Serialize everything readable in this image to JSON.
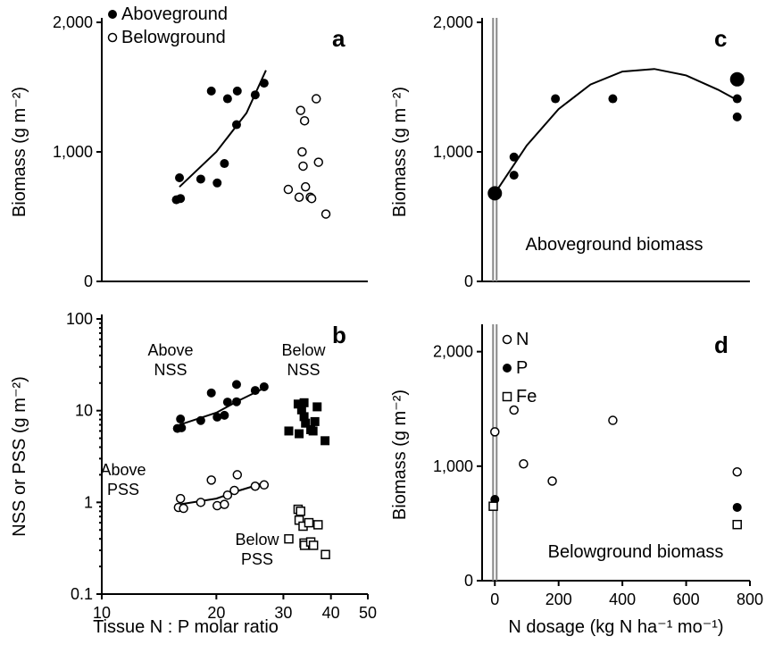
{
  "chart_data": [
    {
      "id": "a",
      "type": "scatter",
      "panel_label": "a",
      "xlabel": "",
      "ylabel": "Biomass (g m⁻²)",
      "xlim": [
        10,
        50
      ],
      "ylim": [
        0,
        2000
      ],
      "xscale": "log",
      "xticks": [],
      "yticks": [
        0,
        1000,
        2000
      ],
      "ytick_labels": [
        "0",
        "1,000",
        "2,000"
      ],
      "legend": [
        {
          "name": "Aboveground",
          "marker": "filled-circle"
        },
        {
          "name": "Belowground",
          "marker": "open-circle"
        }
      ],
      "legend_position": "top-left",
      "series": [
        {
          "name": "Aboveground",
          "marker": "filled-circle",
          "points": [
            [
              15.7,
              630
            ],
            [
              16.1,
              640
            ],
            [
              16.0,
              800
            ],
            [
              18.2,
              790
            ],
            [
              19.4,
              1470
            ],
            [
              20.1,
              760
            ],
            [
              21.0,
              910
            ],
            [
              21.4,
              1410
            ],
            [
              22.6,
              1210
            ],
            [
              22.7,
              1470
            ],
            [
              25.3,
              1440
            ],
            [
              26.7,
              1530
            ]
          ]
        },
        {
          "name": "Belowground",
          "marker": "open-circle",
          "points": [
            [
              30.9,
              710
            ],
            [
              33.0,
              650
            ],
            [
              33.3,
              1320
            ],
            [
              33.6,
              1000
            ],
            [
              33.8,
              890
            ],
            [
              34.1,
              1240
            ],
            [
              34.3,
              730
            ],
            [
              35.3,
              650
            ],
            [
              35.6,
              640
            ],
            [
              36.6,
              1410
            ],
            [
              37.1,
              920
            ],
            [
              38.8,
              520
            ]
          ]
        }
      ],
      "fit_lines": [
        {
          "series": "Aboveground",
          "points": [
            [
              16,
              730
            ],
            [
              20,
              1000
            ],
            [
              24,
              1300
            ],
            [
              27,
              1630
            ]
          ]
        }
      ]
    },
    {
      "id": "b",
      "type": "scatter",
      "panel_label": "b",
      "xlabel": "Tissue N : P molar ratio",
      "ylabel": "NSS or PSS (g m⁻²)",
      "xlim": [
        10,
        50
      ],
      "ylim": [
        0.1,
        100
      ],
      "xscale": "log",
      "yscale": "log",
      "xticks": [
        10,
        20,
        30,
        40,
        50
      ],
      "xtick_labels": [
        "10",
        "20",
        "30",
        "40",
        "50"
      ],
      "yticks": [
        0.1,
        1,
        10,
        100
      ],
      "ytick_labels": [
        "0.1",
        "1",
        "10",
        "100"
      ],
      "annotations": [
        {
          "text": [
            "Above",
            "NSS"
          ],
          "series": "Above NSS"
        },
        {
          "text": [
            "Below",
            "NSS"
          ],
          "series": "Below NSS"
        },
        {
          "text": [
            "Above",
            "PSS"
          ],
          "series": "Above PSS"
        },
        {
          "text": [
            "Below",
            "PSS"
          ],
          "series": "Below PSS"
        }
      ],
      "series": [
        {
          "name": "Above NSS",
          "marker": "filled-circle",
          "points": [
            [
              15.8,
              6.4
            ],
            [
              16.2,
              6.5
            ],
            [
              16.1,
              8.1
            ],
            [
              18.2,
              7.8
            ],
            [
              19.4,
              15.6
            ],
            [
              20.1,
              8.5
            ],
            [
              21.0,
              8.9
            ],
            [
              21.4,
              12.4
            ],
            [
              22.6,
              12.5
            ],
            [
              22.6,
              19.3
            ],
            [
              25.3,
              16.6
            ],
            [
              26.7,
              18.2
            ]
          ]
        },
        {
          "name": "Below NSS",
          "marker": "filled-square",
          "points": [
            [
              31.0,
              6.0
            ],
            [
              32.8,
              11.8
            ],
            [
              33.5,
              10.2
            ],
            [
              33.0,
              5.6
            ],
            [
              34.0,
              8.6
            ],
            [
              34.0,
              12.2
            ],
            [
              34.3,
              7.3
            ],
            [
              35.4,
              6.2
            ],
            [
              35.9,
              6.0
            ],
            [
              36.3,
              7.6
            ],
            [
              36.8,
              11.0
            ],
            [
              38.6,
              4.7
            ]
          ]
        },
        {
          "name": "Above PSS",
          "marker": "open-circle",
          "points": [
            [
              15.9,
              0.88
            ],
            [
              16.4,
              0.86
            ],
            [
              16.1,
              1.1
            ],
            [
              18.2,
              1.0
            ],
            [
              19.4,
              1.75
            ],
            [
              20.1,
              0.92
            ],
            [
              21.0,
              0.95
            ],
            [
              21.4,
              1.2
            ],
            [
              22.3,
              1.35
            ],
            [
              22.7,
              2.0
            ],
            [
              25.3,
              1.5
            ],
            [
              26.7,
              1.55
            ]
          ]
        },
        {
          "name": "Below PSS",
          "marker": "open-square",
          "points": [
            [
              31.0,
              0.4
            ],
            [
              32.8,
              0.84
            ],
            [
              33.0,
              0.64
            ],
            [
              33.3,
              0.8
            ],
            [
              33.8,
              0.55
            ],
            [
              34.0,
              0.36
            ],
            [
              34.1,
              0.34
            ],
            [
              35.0,
              0.6
            ],
            [
              35.4,
              0.37
            ],
            [
              36.0,
              0.34
            ],
            [
              37.0,
              0.57
            ],
            [
              38.7,
              0.27
            ]
          ]
        }
      ],
      "fit_lines": [
        {
          "series": "Above NSS",
          "points": [
            [
              16,
              7.0
            ],
            [
              20,
              9.5
            ],
            [
              23,
              13.0
            ],
            [
              27,
              18.0
            ]
          ]
        },
        {
          "series": "Above PSS",
          "points": [
            [
              16,
              0.95
            ],
            [
              20,
              1.1
            ],
            [
              23,
              1.35
            ],
            [
              27,
              1.65
            ]
          ]
        }
      ]
    },
    {
      "id": "c",
      "type": "scatter",
      "panel_label": "c",
      "xlabel": "",
      "ylabel": "Biomass (g m⁻²)",
      "xlim": [
        -40,
        800
      ],
      "ylim": [
        0,
        2000
      ],
      "xticks": [],
      "yticks": [
        0,
        1000,
        2000
      ],
      "ytick_labels": [
        "0",
        "1,000",
        "2,000"
      ],
      "annotation": "Aboveground biomass",
      "series": [
        {
          "name": "Aboveground",
          "marker": "filled-circle",
          "points": [
            [
              0,
              680
            ],
            [
              60,
              820
            ],
            [
              60,
              960
            ],
            [
              190,
              1410
            ],
            [
              370,
              1410
            ],
            [
              760,
              1410
            ],
            [
              760,
              1270
            ]
          ]
        },
        {
          "name": "Aboveground (large)",
          "marker": "filled-circle-large",
          "points": [
            [
              0,
              680
            ],
            [
              760,
              1560
            ]
          ]
        }
      ],
      "fit_lines": [
        {
          "series": "Aboveground",
          "points": [
            [
              0,
              680
            ],
            [
              100,
              1050
            ],
            [
              200,
              1330
            ],
            [
              300,
              1520
            ],
            [
              400,
              1620
            ],
            [
              500,
              1640
            ],
            [
              600,
              1590
            ],
            [
              700,
              1480
            ],
            [
              760,
              1400
            ]
          ]
        }
      ],
      "vertical_line_x": 0
    },
    {
      "id": "d",
      "type": "scatter",
      "panel_label": "d",
      "xlabel": "N dosage (kg N ha⁻¹ mo⁻¹)",
      "ylabel": "Biomass (g m⁻²)",
      "xlim": [
        -40,
        800
      ],
      "ylim": [
        0,
        2200
      ],
      "xticks": [
        0,
        200,
        400,
        600,
        800
      ],
      "xtick_labels": [
        "0",
        "200",
        "400",
        "600",
        "800"
      ],
      "yticks": [
        0,
        1000,
        2000
      ],
      "ytick_labels": [
        "0",
        "1,000",
        "2,000"
      ],
      "annotation": "Belowground biomass",
      "legend": [
        {
          "name": "N",
          "marker": "open-circle"
        },
        {
          "name": "P",
          "marker": "filled-circle"
        },
        {
          "name": "Fe",
          "marker": "open-square"
        }
      ],
      "legend_position": "top-left",
      "series": [
        {
          "name": "N",
          "marker": "open-circle",
          "points": [
            [
              0,
              1300
            ],
            [
              60,
              1490
            ],
            [
              90,
              1020
            ],
            [
              180,
              870
            ],
            [
              370,
              1400
            ],
            [
              760,
              950
            ]
          ]
        },
        {
          "name": "P",
          "marker": "filled-circle",
          "points": [
            [
              0,
              710
            ],
            [
              760,
              640
            ]
          ]
        },
        {
          "name": "Fe",
          "marker": "open-square",
          "points": [
            [
              -5,
              650
            ],
            [
              760,
              490
            ]
          ]
        }
      ],
      "vertical_line_x": 0
    }
  ]
}
